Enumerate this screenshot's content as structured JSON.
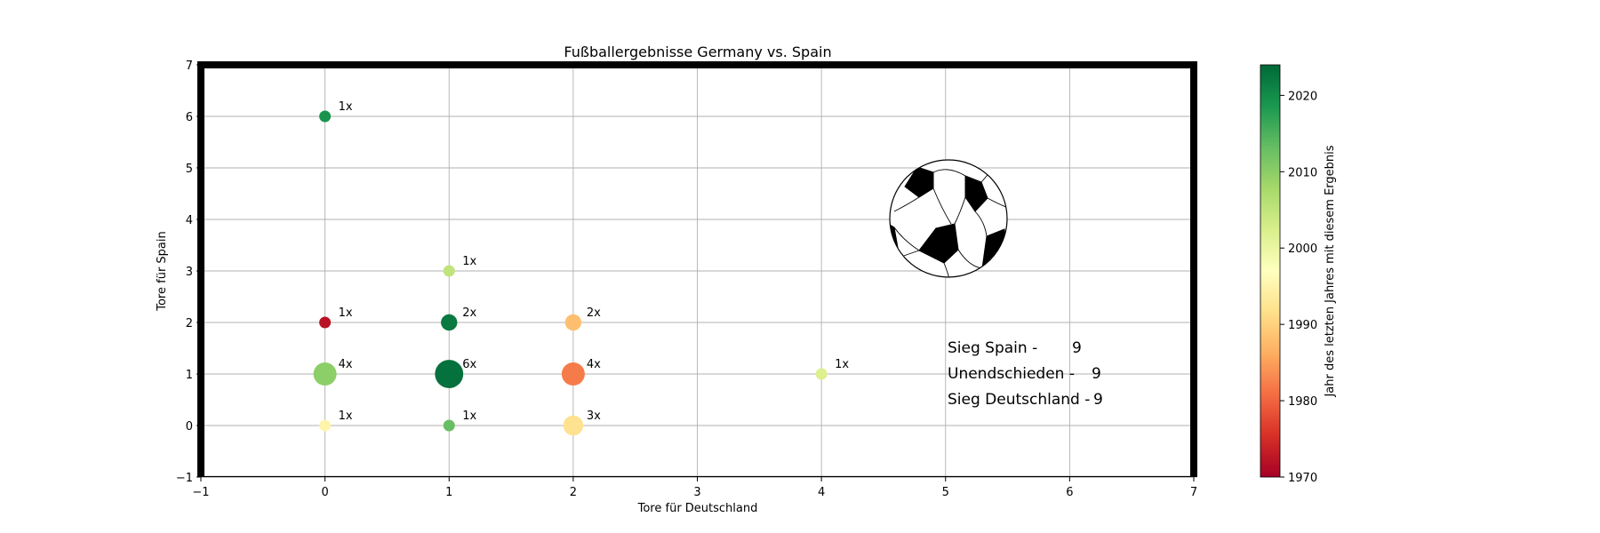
{
  "chart_data": {
    "type": "scatter",
    "title": "Fußballergebnisse Germany vs. Spain",
    "xlabel": "Tore für Deutschland",
    "ylabel": "Tore für Spain",
    "xlim": [
      -1,
      7
    ],
    "ylim": [
      -1,
      7
    ],
    "x_ticks": [
      "−1",
      "0",
      "1",
      "2",
      "3",
      "4",
      "5",
      "6",
      "7"
    ],
    "y_ticks": [
      "−1",
      "0",
      "1",
      "2",
      "3",
      "4",
      "5",
      "6",
      "7"
    ],
    "grid": true,
    "points": [
      {
        "x": 0,
        "y": 6,
        "count": 1,
        "label": "1x",
        "year": 2019
      },
      {
        "x": 1,
        "y": 3,
        "count": 1,
        "label": "1x",
        "year": 2005
      },
      {
        "x": 0,
        "y": 2,
        "count": 1,
        "label": "1x",
        "year": 1972
      },
      {
        "x": 1,
        "y": 2,
        "count": 2,
        "label": "2x",
        "year": 2022
      },
      {
        "x": 2,
        "y": 2,
        "count": 2,
        "label": "2x",
        "year": 1988
      },
      {
        "x": 0,
        "y": 1,
        "count": 4,
        "label": "4x",
        "year": 2010
      },
      {
        "x": 1,
        "y": 1,
        "count": 6,
        "label": "6x",
        "year": 2023
      },
      {
        "x": 2,
        "y": 1,
        "count": 4,
        "label": "4x",
        "year": 1982
      },
      {
        "x": 4,
        "y": 1,
        "count": 1,
        "label": "1x",
        "year": 2002
      },
      {
        "x": 0,
        "y": 0,
        "count": 1,
        "label": "1x",
        "year": 1995
      },
      {
        "x": 1,
        "y": 0,
        "count": 1,
        "label": "1x",
        "year": 2013
      },
      {
        "x": 2,
        "y": 0,
        "count": 3,
        "label": "3x",
        "year": 1992
      }
    ],
    "summary": [
      {
        "label": "Sieg Spain -",
        "value": "9"
      },
      {
        "label": "Unendschieden -",
        "value": "9"
      },
      {
        "label": "Sieg Deutschland -",
        "value": "9"
      }
    ],
    "colorbar": {
      "label": "Jahr des letzten Jahres mit diesem Ergebnis",
      "min": 1970,
      "max": 2024,
      "ticks": [
        "1970",
        "1980",
        "1990",
        "2000",
        "2010",
        "2020"
      ],
      "colormap": "RdYlGn",
      "colors": [
        "#a50026",
        "#d73027",
        "#f46d43",
        "#fdae61",
        "#fee08b",
        "#ffffbf",
        "#d9ef8b",
        "#a6d96a",
        "#66bd63",
        "#1a9850",
        "#006837"
      ]
    },
    "decoration": "soccer-ball-icon"
  }
}
